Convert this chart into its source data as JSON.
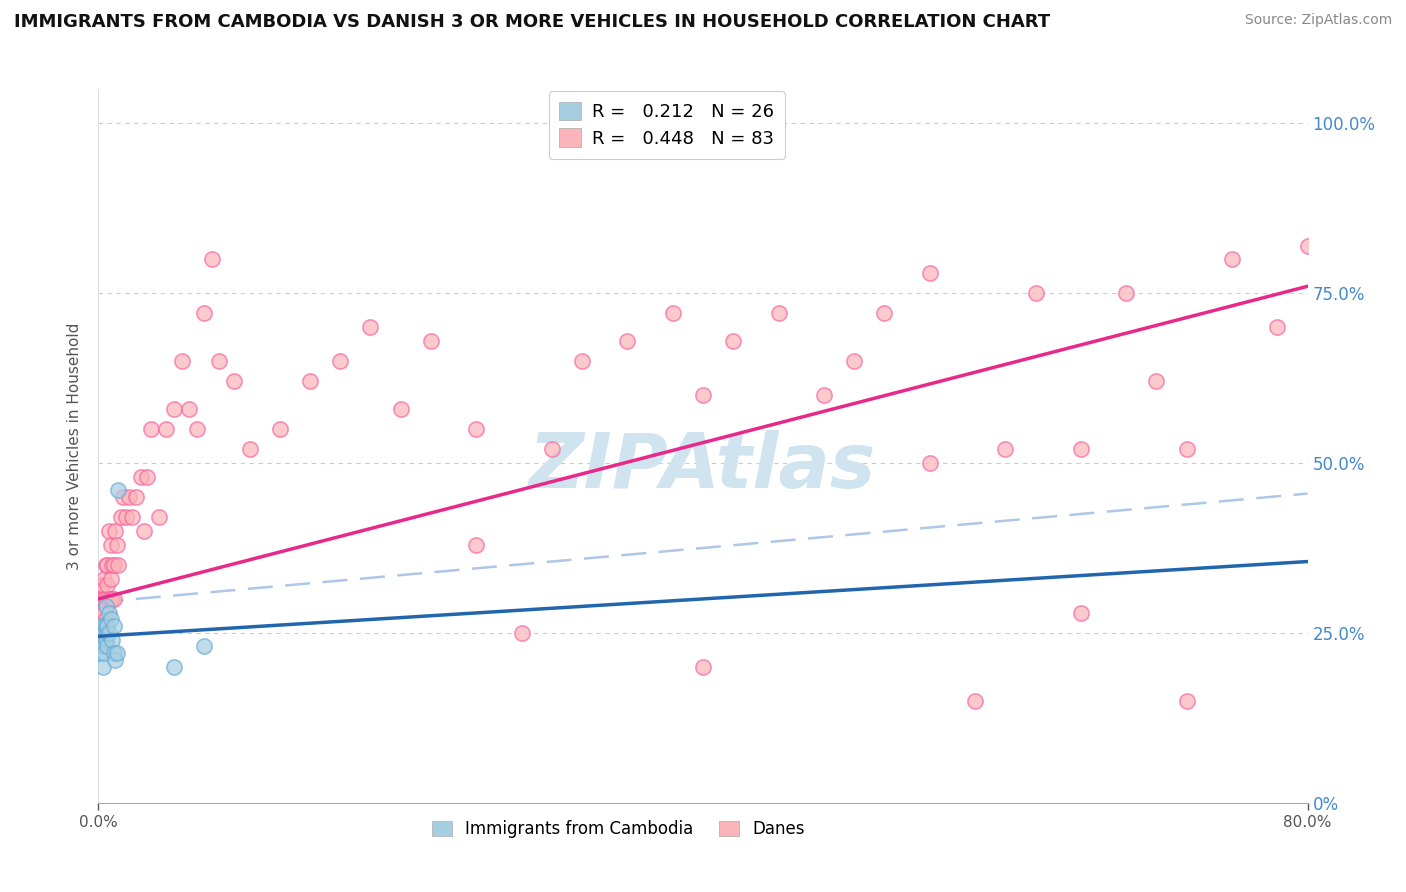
{
  "title": "IMMIGRANTS FROM CAMBODIA VS DANISH 3 OR MORE VEHICLES IN HOUSEHOLD CORRELATION CHART",
  "source": "Source: ZipAtlas.com",
  "ylabel": "3 or more Vehicles in Household",
  "legend_blue_R": "0.212",
  "legend_blue_N": "26",
  "legend_pink_R": "0.448",
  "legend_pink_N": "83",
  "legend_label_blue": "Immigrants from Cambodia",
  "legend_label_pink": "Danes",
  "blue_color": "#a6cee3",
  "blue_edge_color": "#6baed6",
  "pink_color": "#fbb4b9",
  "pink_edge_color": "#f768a1",
  "blue_line_color": "#2166ac",
  "pink_line_color": "#e7298a",
  "dashed_line_color": "#aec7e8",
  "background_color": "#ffffff",
  "grid_color": "#cccccc",
  "watermark": "ZIPAtlas",
  "watermark_color": "#d0e4f0",
  "blue_x": [
    0.001,
    0.002,
    0.002,
    0.003,
    0.003,
    0.003,
    0.004,
    0.004,
    0.004,
    0.005,
    0.005,
    0.005,
    0.006,
    0.006,
    0.006,
    0.007,
    0.007,
    0.008,
    0.009,
    0.01,
    0.01,
    0.011,
    0.012,
    0.013,
    0.05,
    0.07
  ],
  "blue_y": [
    0.22,
    0.24,
    0.26,
    0.23,
    0.26,
    0.2,
    0.23,
    0.25,
    0.22,
    0.24,
    0.26,
    0.29,
    0.25,
    0.26,
    0.23,
    0.25,
    0.28,
    0.27,
    0.24,
    0.26,
    0.22,
    0.21,
    0.22,
    0.46,
    0.2,
    0.23
  ],
  "pink_x": [
    0.001,
    0.002,
    0.002,
    0.002,
    0.003,
    0.003,
    0.003,
    0.004,
    0.004,
    0.004,
    0.005,
    0.005,
    0.005,
    0.006,
    0.006,
    0.006,
    0.007,
    0.007,
    0.008,
    0.008,
    0.008,
    0.009,
    0.009,
    0.01,
    0.01,
    0.011,
    0.012,
    0.013,
    0.015,
    0.016,
    0.018,
    0.02,
    0.022,
    0.025,
    0.028,
    0.03,
    0.032,
    0.035,
    0.04,
    0.045,
    0.05,
    0.055,
    0.06,
    0.065,
    0.07,
    0.075,
    0.08,
    0.09,
    0.1,
    0.12,
    0.14,
    0.16,
    0.18,
    0.2,
    0.22,
    0.25,
    0.28,
    0.3,
    0.32,
    0.35,
    0.38,
    0.4,
    0.42,
    0.45,
    0.48,
    0.5,
    0.52,
    0.55,
    0.58,
    0.6,
    0.62,
    0.65,
    0.68,
    0.7,
    0.72,
    0.75,
    0.78,
    0.8,
    0.25,
    0.4,
    0.55,
    0.65,
    0.72
  ],
  "pink_y": [
    0.3,
    0.25,
    0.32,
    0.28,
    0.27,
    0.3,
    0.32,
    0.28,
    0.3,
    0.33,
    0.27,
    0.3,
    0.35,
    0.29,
    0.32,
    0.35,
    0.3,
    0.4,
    0.3,
    0.33,
    0.38,
    0.3,
    0.35,
    0.3,
    0.35,
    0.4,
    0.38,
    0.35,
    0.42,
    0.45,
    0.42,
    0.45,
    0.42,
    0.45,
    0.48,
    0.4,
    0.48,
    0.55,
    0.42,
    0.55,
    0.58,
    0.65,
    0.58,
    0.55,
    0.72,
    0.8,
    0.65,
    0.62,
    0.52,
    0.55,
    0.62,
    0.65,
    0.7,
    0.58,
    0.68,
    0.38,
    0.25,
    0.52,
    0.65,
    0.68,
    0.72,
    0.6,
    0.68,
    0.72,
    0.6,
    0.65,
    0.72,
    0.78,
    0.15,
    0.52,
    0.75,
    0.52,
    0.75,
    0.62,
    0.52,
    0.8,
    0.7,
    0.82,
    0.55,
    0.2,
    0.5,
    0.28,
    0.15
  ],
  "xmin": 0.0,
  "xmax": 0.8,
  "ymin": 0.0,
  "ymax": 1.05,
  "title_fontsize": 13,
  "source_fontsize": 10,
  "right_yticks": [
    0.0,
    0.25,
    0.5,
    0.75,
    1.0
  ],
  "right_ytick_labels": [
    "0%",
    "25.0%",
    "50.0%",
    "75.0%",
    "100.0%"
  ]
}
